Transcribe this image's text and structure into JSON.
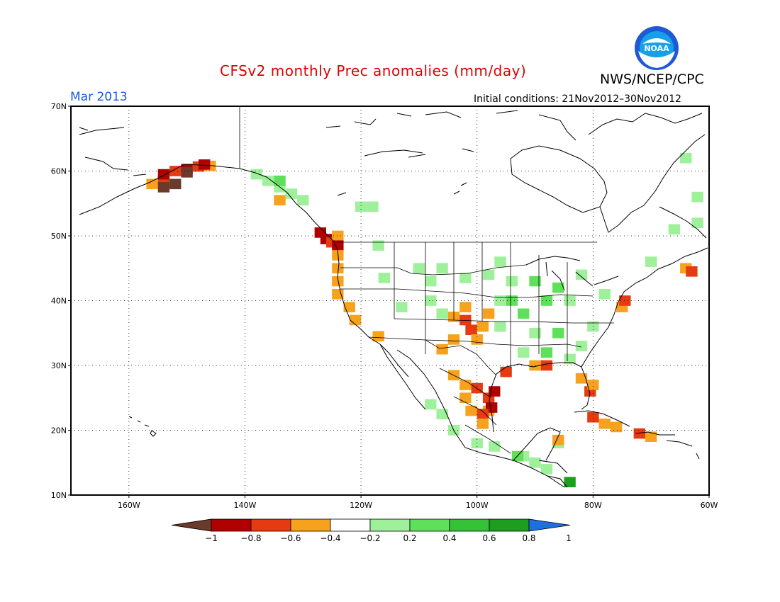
{
  "title": "CFSv2 monthly Prec anomalies (mm/day)",
  "agency": "NWS/NCEP/CPC",
  "logo_text": "NOAA",
  "month": "Mar 2013",
  "initial_conditions": "Initial conditions: 21Nov2012–30Nov2012",
  "lat_ticks": [
    {
      "value": 70,
      "label": "70N"
    },
    {
      "value": 60,
      "label": "60N"
    },
    {
      "value": 50,
      "label": "50N"
    },
    {
      "value": 40,
      "label": "40N"
    },
    {
      "value": 30,
      "label": "30N"
    },
    {
      "value": 20,
      "label": "20N"
    },
    {
      "value": 10,
      "label": "10N"
    }
  ],
  "lon_ticks": [
    {
      "value": -160,
      "label": "160W"
    },
    {
      "value": -140,
      "label": "140W"
    },
    {
      "value": -120,
      "label": "120W"
    },
    {
      "value": -100,
      "label": "100W"
    },
    {
      "value": -80,
      "label": "80W"
    },
    {
      "value": -60,
      "label": "60W"
    }
  ],
  "extent": {
    "lon_min": -170,
    "lon_max": -60,
    "lat_min": 10,
    "lat_max": 70
  },
  "colorbar": {
    "labels": [
      "−1",
      "−0.8",
      "−0.6",
      "−0.4",
      "−0.2",
      "0.2",
      "0.4",
      "0.6",
      "0.8",
      "1"
    ],
    "low_arrow_color": "#6b3a2a",
    "high_arrow_color": "#1e6fe0",
    "bins": [
      {
        "color": "#b00000"
      },
      {
        "color": "#e63a12"
      },
      {
        "color": "#f7a21c"
      },
      {
        "color": "#ffffff"
      },
      {
        "color": "#9ef09a"
      },
      {
        "color": "#5fe05a"
      },
      {
        "color": "#36c236"
      },
      {
        "color": "#1e9e1e"
      }
    ]
  },
  "anomaly_colors": {
    "brown": "#6b3a2a",
    "dark_red": "#b00000",
    "red": "#e63a12",
    "orange": "#f7a21c",
    "light_green": "#9ef09a",
    "green": "#5fe05a",
    "mid_green": "#36c236",
    "dark_green": "#1e9e1e"
  },
  "anomaly_cells": [
    {
      "c": "orange",
      "lon": -156,
      "lat": 58
    },
    {
      "c": "red",
      "lon": -154,
      "lat": 58.5
    },
    {
      "c": "dark_red",
      "lon": -154,
      "lat": 59.5
    },
    {
      "c": "brown",
      "lon": -152,
      "lat": 58
    },
    {
      "c": "brown",
      "lon": -154,
      "lat": 57.5
    },
    {
      "c": "red",
      "lon": -152,
      "lat": 60
    },
    {
      "c": "dark_red",
      "lon": -150,
      "lat": 60.3
    },
    {
      "c": "red",
      "lon": -148,
      "lat": 60.7
    },
    {
      "c": "orange",
      "lon": -146,
      "lat": 60.8
    },
    {
      "c": "brown",
      "lon": -150,
      "lat": 59.8
    },
    {
      "c": "dark_red",
      "lon": -147,
      "lat": 61
    },
    {
      "c": "light_green",
      "lon": -138,
      "lat": 59.5
    },
    {
      "c": "light_green",
      "lon": -136,
      "lat": 58.5
    },
    {
      "c": "light_green",
      "lon": -134,
      "lat": 57.5
    },
    {
      "c": "light_green",
      "lon": -132,
      "lat": 56.5
    },
    {
      "c": "green",
      "lon": -134,
      "lat": 58.5
    },
    {
      "c": "light_green",
      "lon": -130,
      "lat": 55.5
    },
    {
      "c": "orange",
      "lon": -134,
      "lat": 55.5
    },
    {
      "c": "light_green",
      "lon": -120,
      "lat": 54.5
    },
    {
      "c": "light_green",
      "lon": -118,
      "lat": 54.5
    },
    {
      "c": "dark_red",
      "lon": -127,
      "lat": 50.5
    },
    {
      "c": "dark_red",
      "lon": -126,
      "lat": 49.5
    },
    {
      "c": "red",
      "lon": -125,
      "lat": 49
    },
    {
      "c": "orange",
      "lon": -124,
      "lat": 50
    },
    {
      "c": "dark_red",
      "lon": -124,
      "lat": 48.5
    },
    {
      "c": "orange",
      "lon": -124,
      "lat": 47
    },
    {
      "c": "orange",
      "lon": -124,
      "lat": 45
    },
    {
      "c": "orange",
      "lon": -124,
      "lat": 43
    },
    {
      "c": "orange",
      "lon": -124,
      "lat": 41
    },
    {
      "c": "orange",
      "lon": -122,
      "lat": 39
    },
    {
      "c": "orange",
      "lon": -121,
      "lat": 37
    },
    {
      "c": "orange",
      "lon": -117,
      "lat": 34.5
    },
    {
      "c": "light_green",
      "lon": -117,
      "lat": 48.5
    },
    {
      "c": "light_green",
      "lon": -116,
      "lat": 43.5
    },
    {
      "c": "light_green",
      "lon": -110,
      "lat": 45
    },
    {
      "c": "light_green",
      "lon": -108,
      "lat": 43
    },
    {
      "c": "light_green",
      "lon": -106,
      "lat": 45
    },
    {
      "c": "light_green",
      "lon": -108,
      "lat": 40
    },
    {
      "c": "light_green",
      "lon": -102,
      "lat": 43.5
    },
    {
      "c": "light_green",
      "lon": -98,
      "lat": 44
    },
    {
      "c": "light_green",
      "lon": -96,
      "lat": 46
    },
    {
      "c": "light_green",
      "lon": -113,
      "lat": 39
    },
    {
      "c": "light_green",
      "lon": -106,
      "lat": 38
    },
    {
      "c": "orange",
      "lon": -104,
      "lat": 37.5
    },
    {
      "c": "red",
      "lon": -102,
      "lat": 37
    },
    {
      "c": "red",
      "lon": -101,
      "lat": 35.5
    },
    {
      "c": "orange",
      "lon": -99,
      "lat": 36
    },
    {
      "c": "orange",
      "lon": -104,
      "lat": 34
    },
    {
      "c": "orange",
      "lon": -106,
      "lat": 32.5
    },
    {
      "c": "orange",
      "lon": -102,
      "lat": 39
    },
    {
      "c": "orange",
      "lon": -98,
      "lat": 38
    },
    {
      "c": "orange",
      "lon": -100,
      "lat": 34
    },
    {
      "c": "green",
      "lon": -94,
      "lat": 40
    },
    {
      "c": "green",
      "lon": -92,
      "lat": 38
    },
    {
      "c": "green",
      "lon": -88,
      "lat": 40
    },
    {
      "c": "green",
      "lon": -86,
      "lat": 42
    },
    {
      "c": "light_green",
      "lon": -84,
      "lat": 40
    },
    {
      "c": "light_green",
      "lon": -90,
      "lat": 35
    },
    {
      "c": "green",
      "lon": -86,
      "lat": 35
    },
    {
      "c": "light_green",
      "lon": -82,
      "lat": 33
    },
    {
      "c": "green",
      "lon": -88,
      "lat": 32
    },
    {
      "c": "light_green",
      "lon": -92,
      "lat": 32
    },
    {
      "c": "light_green",
      "lon": -84,
      "lat": 31
    },
    {
      "c": "light_green",
      "lon": -80,
      "lat": 36
    },
    {
      "c": "light_green",
      "lon": -94,
      "lat": 43
    },
    {
      "c": "green",
      "lon": -90,
      "lat": 43
    },
    {
      "c": "light_green",
      "lon": -82,
      "lat": 44
    },
    {
      "c": "light_green",
      "lon": -78,
      "lat": 41
    },
    {
      "c": "light_green",
      "lon": -96,
      "lat": 40
    },
    {
      "c": "light_green",
      "lon": -96,
      "lat": 36
    },
    {
      "c": "orange",
      "lon": -75,
      "lat": 39
    },
    {
      "c": "red",
      "lon": -74.5,
      "lat": 40
    },
    {
      "c": "orange",
      "lon": -90,
      "lat": 30
    },
    {
      "c": "red",
      "lon": -88,
      "lat": 30
    },
    {
      "c": "red",
      "lon": -95,
      "lat": 29
    },
    {
      "c": "orange",
      "lon": -82,
      "lat": 28
    },
    {
      "c": "red",
      "lon": -80.5,
      "lat": 26
    },
    {
      "c": "orange",
      "lon": -80,
      "lat": 27
    },
    {
      "c": "orange",
      "lon": -104,
      "lat": 28.5
    },
    {
      "c": "orange",
      "lon": -102,
      "lat": 27
    },
    {
      "c": "red",
      "lon": -100,
      "lat": 26.5
    },
    {
      "c": "orange",
      "lon": -102,
      "lat": 25
    },
    {
      "c": "red",
      "lon": -98,
      "lat": 25
    },
    {
      "c": "dark_red",
      "lon": -97,
      "lat": 26
    },
    {
      "c": "orange",
      "lon": -98,
      "lat": 23
    },
    {
      "c": "dark_red",
      "lon": -97.5,
      "lat": 23.5
    },
    {
      "c": "red",
      "lon": -99,
      "lat": 22.5
    },
    {
      "c": "orange",
      "lon": -101,
      "lat": 23
    },
    {
      "c": "orange",
      "lon": -99,
      "lat": 21
    },
    {
      "c": "light_green",
      "lon": -108,
      "lat": 24
    },
    {
      "c": "light_green",
      "lon": -106,
      "lat": 22.5
    },
    {
      "c": "light_green",
      "lon": -104,
      "lat": 20
    },
    {
      "c": "light_green",
      "lon": -100,
      "lat": 18
    },
    {
      "c": "light_green",
      "lon": -97,
      "lat": 17.5
    },
    {
      "c": "light_green",
      "lon": -92,
      "lat": 16
    },
    {
      "c": "light_green",
      "lon": -90,
      "lat": 15
    },
    {
      "c": "light_green",
      "lon": -88,
      "lat": 14
    },
    {
      "c": "green",
      "lon": -93,
      "lat": 16
    },
    {
      "c": "dark_green",
      "lon": -84,
      "lat": 12
    },
    {
      "c": "light_green",
      "lon": -86,
      "lat": 18
    },
    {
      "c": "orange",
      "lon": -86,
      "lat": 18.5
    },
    {
      "c": "orange",
      "lon": -78,
      "lat": 21
    },
    {
      "c": "orange",
      "lon": -76,
      "lat": 20.5
    },
    {
      "c": "red",
      "lon": -80,
      "lat": 22
    },
    {
      "c": "red",
      "lon": -72,
      "lat": 19.5
    },
    {
      "c": "orange",
      "lon": -70,
      "lat": 19
    },
    {
      "c": "light_green",
      "lon": -66,
      "lat": 51
    },
    {
      "c": "light_green",
      "lon": -62,
      "lat": 52
    },
    {
      "c": "light_green",
      "lon": -62,
      "lat": 56
    },
    {
      "c": "light_green",
      "lon": -64,
      "lat": 62
    },
    {
      "c": "light_green",
      "lon": -70,
      "lat": 46
    },
    {
      "c": "orange",
      "lon": -64,
      "lat": 45
    },
    {
      "c": "red",
      "lon": -63,
      "lat": 44.5
    }
  ]
}
